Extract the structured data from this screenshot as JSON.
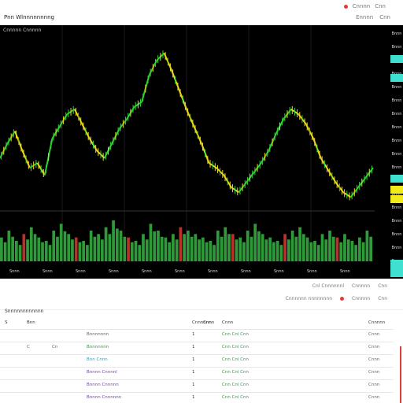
{
  "header": {
    "app_title": "Pnn Wlnnnnnnnng",
    "top_right_a": [
      "Cnnnn",
      "Cnn"
    ],
    "top_right_b": [
      "Ennnn",
      "Cnn"
    ],
    "top_right_label": "Cnn"
  },
  "chart": {
    "header_text": "Cnnnnn Cnnnnn",
    "x_ticks": [
      "Snnn",
      "Snnn",
      "Snnn",
      "Snnn",
      "Snnn",
      "Snnn",
      "Snnn",
      "Snnn",
      "Snnn",
      "Snnn",
      "Snnn"
    ],
    "price_labels": [
      "Bnnn",
      "Bnnn",
      "Bnnn",
      "Bnnn",
      "Bnnn",
      "Bnnn",
      "Bnnn",
      "Bnnn",
      "Bnnn",
      "Bnnn",
      "Bnnn",
      "Bnnn",
      "Bnnn",
      "Bnnn",
      "Bnnn",
      "Bnnn",
      "Bnnn",
      "Bnnn"
    ],
    "colors": {
      "background": "#000000",
      "up": "#2fd12f",
      "down": "#e8d81c",
      "vol_up": "#2f9a3a",
      "vol_down": "#b8322a",
      "cyan_tag": "#3fe0cf",
      "yellow_tag": "#f3ea1a"
    },
    "price_series": [
      52,
      58,
      63,
      55,
      48,
      50,
      45,
      60,
      65,
      70,
      72,
      66,
      60,
      55,
      52,
      58,
      64,
      68,
      73,
      75,
      86,
      92,
      95,
      88,
      80,
      72,
      65,
      58,
      50,
      48,
      45,
      40,
      38,
      42,
      46,
      50,
      55,
      62,
      68,
      72,
      70,
      66,
      60,
      52,
      47,
      42,
      38,
      36,
      40,
      44,
      48
    ],
    "volume_series": [
      7,
      9,
      6,
      8,
      10,
      7,
      6,
      9,
      11,
      8,
      7,
      6,
      9,
      8,
      10,
      12,
      9,
      7,
      6,
      8,
      11,
      9,
      7,
      8,
      10,
      9,
      8,
      7,
      6,
      9,
      10,
      8,
      7,
      9,
      11,
      8,
      7,
      6,
      8,
      9,
      10,
      7,
      6,
      8,
      9,
      7,
      8,
      6,
      7,
      9
    ]
  },
  "toolbar": {
    "row1": [
      "Cnl Cnnnnnnl",
      "Cnnnnn",
      "Cnn"
    ],
    "row2_label": "Cnnnnnn nnnnnnnn",
    "row2_right": [
      "Cnnnnn",
      "Cnn"
    ]
  },
  "section_title": "Snnnnnnnnnnnn",
  "table": {
    "headers": [
      "S",
      "Bnn",
      "Cnnnnnn",
      "Cnnn",
      "Cnnn",
      "Cnnnnn",
      "Cnnn",
      "Cnnnn",
      "Cnn"
    ],
    "rows": [
      {
        "c1": "",
        "c2": "Bnnnnnnn",
        "c3": "1",
        "c4": "Cnn Cnl Cnn",
        "c5": "Cnnn"
      },
      {
        "c1": "C",
        "c1c": "Cn",
        "c2": "Bnnnnnnn",
        "c3": "1",
        "c4": "Cnn Cnl Cnn",
        "c5": "Cnnn"
      },
      {
        "c1": "",
        "c2": "Bnn Cnnn",
        "c3": "1",
        "c4": "Cnn Cnl Cnn",
        "c5": "Cnnn"
      },
      {
        "c1": "",
        "c2": "Bnnnn Cnnnnl",
        "c3": "1",
        "c4": "Cnn Cnl Cnn",
        "c5": "Cnnn"
      },
      {
        "c1": "",
        "c2": "Bnnnn Cnnnnn",
        "c3": "1",
        "c4": "Cnn Cnl Cnn",
        "c5": "Cnnn"
      },
      {
        "c1": "",
        "c2": "Bnnnn Cnnnnnn",
        "c3": "1",
        "c4": "Cnn Cnl Cnn",
        "c5": "Cnnn"
      }
    ]
  }
}
